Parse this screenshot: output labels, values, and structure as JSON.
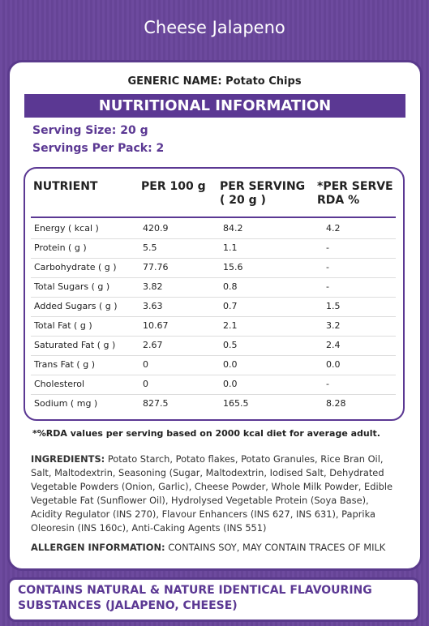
{
  "title": "Cheese Jalapeno",
  "generic_name": "GENERIC NAME: Potato Chips",
  "section_title": "NUTRITIONAL INFORMATION",
  "serving_size": "Serving Size: 20 g",
  "servings_per_pack": "Servings Per Pack: 2",
  "table": {
    "headers": [
      [
        "NUTRIENT"
      ],
      [
        "PER 100 g"
      ],
      [
        "PER SERVING",
        "( 20 g )"
      ],
      [
        "*PER SERVE",
        "RDA %"
      ]
    ],
    "rows": [
      [
        "Energy ( kcal )",
        "420.9",
        "84.2",
        "4.2"
      ],
      [
        "Protein ( g )",
        "5.5",
        "1.1",
        "-"
      ],
      [
        "Carbohydrate ( g )",
        "77.76",
        "15.6",
        "-"
      ],
      [
        "Total Sugars ( g )",
        "3.82",
        "0.8",
        "-"
      ],
      [
        "Added Sugars ( g )",
        "3.63",
        "0.7",
        "1.5"
      ],
      [
        "Total Fat ( g )",
        "10.67",
        "2.1",
        "3.2"
      ],
      [
        "Saturated Fat ( g )",
        "2.67",
        "0.5",
        "2.4"
      ],
      [
        "Trans Fat ( g )",
        "0",
        "0.0",
        "0.0"
      ],
      [
        "Cholesterol",
        "0",
        "0.0",
        "-"
      ],
      [
        "Sodium ( mg )",
        "827.5",
        "165.5",
        "8.28"
      ]
    ]
  },
  "footnote": "*%RDA values per serving based on 2000 kcal diet for average adult.",
  "ingredients": {
    "label": "INGREDIENTS:",
    "text": "Potato Starch, Potato flakes, Potato Granules, Rice Bran Oil, Salt, Maltodextrin, Seasoning (Sugar, Maltodextrin, Iodised Salt, Dehydrated Vegetable Powders (Onion, Garlic), Cheese Powder, Whole Milk Powder, Edible Vegetable Fat (Sunflower Oil), Hydrolysed Vegetable Protein (Soya Base), Acidity Regulator (INS 270), Flavour Enhancers (INS 627, INS 631), Paprika Oleoresin (INS 160c), Anti-Caking Agents (INS 551)"
  },
  "allergen": {
    "label": "ALLERGEN INFORMATION:",
    "text": "CONTAINS SOY, MAY CONTAIN TRACES OF MILK"
  },
  "flavour_note": "CONTAINS NATURAL & NATURE IDENTICAL FLAVOURING SUBSTANCES (JALAPENO, CHEESE)"
}
